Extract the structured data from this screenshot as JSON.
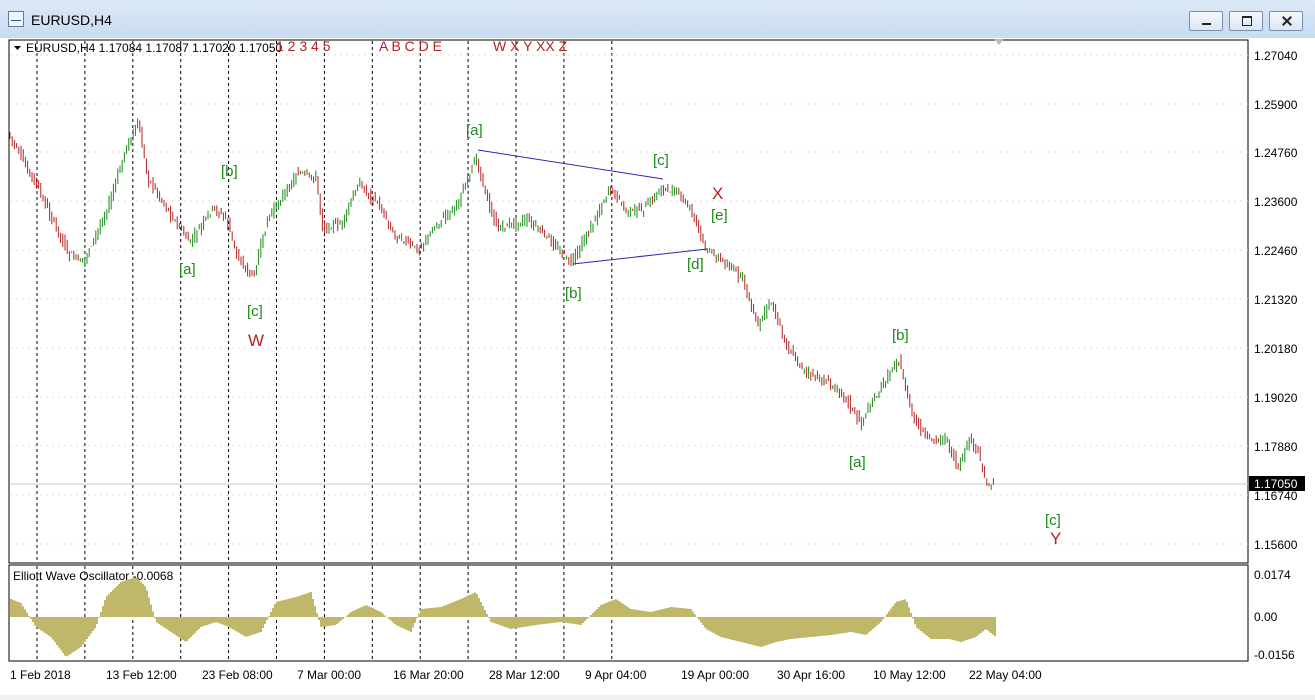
{
  "window": {
    "title": "EURUSD,H4"
  },
  "header": {
    "symbol_info": "EURUSD,H4  1.17084 1.17087 1.17020 1.17050",
    "wave_tools": [
      {
        "label": "1 2 3 4 5"
      },
      {
        "label": "A B C D E"
      },
      {
        "label": "W X Y XX Z"
      }
    ]
  },
  "price_axis": {
    "labels": [
      "1.27040",
      "1.25900",
      "1.24760",
      "1.23600",
      "1.22460",
      "1.21320",
      "1.20180",
      "1.19020",
      "1.17880",
      "1.17050",
      "1.16740",
      "1.15600"
    ],
    "current_price": "1.17050"
  },
  "time_axis": {
    "labels": [
      "1 Feb 2018",
      "13 Feb 12:00",
      "23 Feb 08:00",
      "7 Mar 00:00",
      "16 Mar 20:00",
      "28 Mar 12:00",
      "9 Apr 04:00",
      "19 Apr 00:00",
      "30 Apr 16:00",
      "10 May 12:00",
      "22 May 04:00"
    ]
  },
  "wave_labels": [
    {
      "text": "[a]",
      "color": "#1a8a1a"
    },
    {
      "text": "[b]",
      "color": "#1a8a1a"
    },
    {
      "text": "[c]",
      "color": "#1a8a1a"
    },
    {
      "text": "W",
      "color": "#b22222"
    },
    {
      "text": "[a]",
      "color": "#1a8a1a"
    },
    {
      "text": "[b]",
      "color": "#1a8a1a"
    },
    {
      "text": "[c]",
      "color": "#1a8a1a"
    },
    {
      "text": "[d]",
      "color": "#1a8a1a"
    },
    {
      "text": "[e]",
      "color": "#1a8a1a"
    },
    {
      "text": "X",
      "color": "#b22222"
    },
    {
      "text": "[a]",
      "color": "#1a8a1a"
    },
    {
      "text": "[b]",
      "color": "#1a8a1a"
    },
    {
      "text": "[c]",
      "color": "#1a8a1a"
    },
    {
      "text": "Y",
      "color": "#b22222"
    }
  ],
  "oscillator": {
    "label": "Elliott Wave Oscillator -0.0068",
    "axis_labels": [
      "0.0174",
      "0.00",
      "-0.0156"
    ],
    "color": "#bfb76a"
  },
  "colors": {
    "bull": "#1a8a1a",
    "bear": "#b22222",
    "triangle": "#2a2ab0"
  }
}
